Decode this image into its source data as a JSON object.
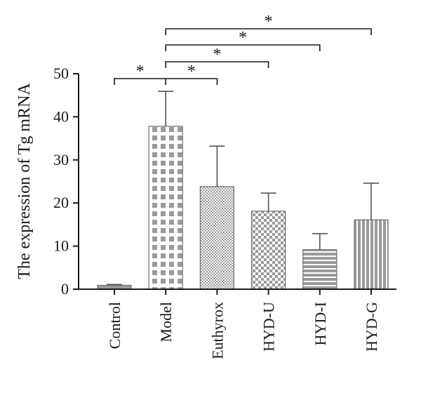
{
  "chart_data": {
    "type": "bar",
    "ylabel": "The expression of Tg mRNA",
    "xlabel": "",
    "categories": [
      "Control",
      "Model",
      "Euthyrox",
      "HYD-U",
      "HYD-I",
      "HYD-G"
    ],
    "values": [
      0.9,
      37.8,
      23.8,
      18.1,
      9.2,
      16.1
    ],
    "error_upper": [
      1.1,
      45.9,
      33.2,
      22.3,
      12.9,
      24.6
    ],
    "patterns": [
      "solid",
      "large-checker",
      "fine-checker",
      "medium-checker",
      "horizontal-stripes",
      "vertical-stripes"
    ],
    "ylim": [
      0,
      50
    ],
    "yticks": [
      "0",
      "10",
      "20",
      "30",
      "40",
      "50"
    ],
    "grid": false,
    "significance": [
      {
        "from": "Control",
        "to": "Model",
        "label": "*"
      },
      {
        "from": "Model",
        "to": "Euthyrox",
        "label": "*"
      },
      {
        "from": "Model",
        "to": "HYD-U",
        "label": "*"
      },
      {
        "from": "Model",
        "to": "HYD-I",
        "label": "*"
      },
      {
        "from": "Model",
        "to": "HYD-G",
        "label": "*"
      }
    ],
    "colors": {
      "bar_fill": "#9a9a9a",
      "bar_light": "#ffffff",
      "bar_edge": "#6e6e6e",
      "axis": "#1a1a1a"
    }
  }
}
